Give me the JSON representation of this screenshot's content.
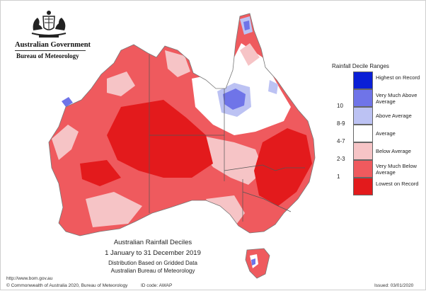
{
  "header": {
    "agency": "Australian Government",
    "bureau": "Bureau of Meteorology"
  },
  "map": {
    "title": "Australian Rainfall Deciles",
    "period": "1 January to 31 December 2019",
    "note": "Distribution Based on Gridded Data",
    "source": "Australian Bureau of Meteorology"
  },
  "legend": {
    "title": "Rainfall Decile Ranges",
    "items": [
      {
        "range": "",
        "label": "Highest on Record",
        "color": "#0a1fd6"
      },
      {
        "range": "10",
        "label": "Very Much Above Average",
        "color": "#6f74e8"
      },
      {
        "range": "8-9",
        "label": "Above Average",
        "color": "#bcc2f3"
      },
      {
        "range": "4-7",
        "label": "Average",
        "color": "#ffffff"
      },
      {
        "range": "2-3",
        "label": "Below Average",
        "color": "#f6c4c6"
      },
      {
        "range": "1",
        "label": "Very Much Below Average",
        "color": "#ef5a5e"
      },
      {
        "range": "",
        "label": "Lowest on Record",
        "color": "#e31a1c"
      }
    ]
  },
  "footer": {
    "website": "http://www.bom.gov.au",
    "copyright": "© Commonwealth of Australia 2020, Bureau of Meteorology",
    "id_code": "ID code: AWAP",
    "issued": "Issued: 03/01/2020"
  }
}
